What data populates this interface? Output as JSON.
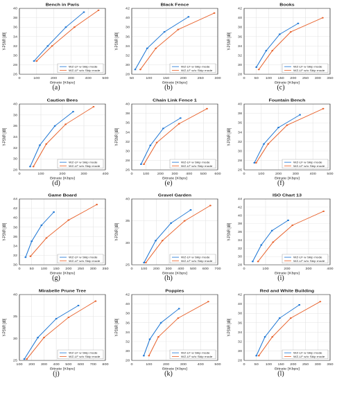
{
  "legend_labels": [
    "WZ-LF w Skip mode",
    "WZ-LF w/o Skip mode"
  ],
  "series_colors": [
    "#1f77d4",
    "#e8622c"
  ],
  "xlabel": "Bitrate [Kbps]",
  "ylabel": "Y-PSNR [dB]",
  "chart_data": [
    {
      "type": "line",
      "letter": "(a)",
      "title": "Bench in Paris",
      "xlim": [
        0,
        500
      ],
      "xticks": [
        0,
        100,
        200,
        300,
        400,
        500
      ],
      "ylim": [
        26,
        40
      ],
      "yticks": [
        26,
        28,
        30,
        32,
        34,
        36,
        38,
        40
      ],
      "series": [
        {
          "name": "WZ-LF w Skip mode",
          "x": [
            85,
            165,
            270,
            375
          ],
          "y": [
            28.8,
            32,
            36,
            39.2
          ]
        },
        {
          "name": "WZ-LF w/o Skip mode",
          "x": [
            100,
            190,
            320,
            460
          ],
          "y": [
            28.8,
            32,
            36,
            39.6
          ]
        }
      ]
    },
    {
      "type": "line",
      "letter": "(b)",
      "title": "Black Fence",
      "xlim": [
        50,
        300
      ],
      "xticks": [
        50,
        100,
        150,
        200,
        250,
        300
      ],
      "ylim": [
        28,
        42
      ],
      "yticks": [
        28,
        30,
        32,
        34,
        36,
        38,
        40,
        42
      ],
      "series": [
        {
          "name": "WZ-LF w Skip mode",
          "x": [
            60,
            95,
            145,
            215
          ],
          "y": [
            29,
            33.5,
            37,
            40.2
          ]
        },
        {
          "name": "WZ-LF w/o Skip mode",
          "x": [
            75,
            120,
            185,
            290
          ],
          "y": [
            29,
            33.5,
            37.5,
            41
          ]
        }
      ]
    },
    {
      "type": "line",
      "letter": "(c)",
      "title": "Books",
      "xlim": [
        0,
        350
      ],
      "xticks": [
        0,
        50,
        100,
        150,
        200,
        250,
        300,
        350
      ],
      "ylim": [
        28,
        42
      ],
      "yticks": [
        28,
        30,
        32,
        34,
        36,
        38,
        40,
        42
      ],
      "series": [
        {
          "name": "WZ-LF w Skip mode",
          "x": [
            50,
            90,
            145,
            220
          ],
          "y": [
            29.5,
            33,
            36.5,
            38.8
          ]
        },
        {
          "name": "WZ-LF w/o Skip mode",
          "x": [
            60,
            115,
            190,
            320
          ],
          "y": [
            29,
            33,
            37,
            40
          ]
        }
      ]
    },
    {
      "type": "line",
      "letter": "(d)",
      "title": "Caution Bees",
      "xlim": [
        0,
        400
      ],
      "xticks": [
        0,
        100,
        200,
        300,
        400
      ],
      "ylim": [
        28,
        40
      ],
      "yticks": [
        28,
        30,
        32,
        34,
        36,
        38,
        40
      ],
      "series": [
        {
          "name": "WZ-LF w Skip mode",
          "x": [
            50,
            95,
            165,
            250
          ],
          "y": [
            28.6,
            32.5,
            36,
            38.6
          ]
        },
        {
          "name": "WZ-LF w/o Skip mode",
          "x": [
            65,
            125,
            215,
            345
          ],
          "y": [
            28.6,
            32.7,
            36.3,
            39.5
          ]
        }
      ]
    },
    {
      "type": "line",
      "letter": "(e)",
      "title": "Chain Link Fence 1",
      "xlim": [
        0,
        600
      ],
      "xticks": [
        0,
        100,
        200,
        300,
        400,
        500,
        600
      ],
      "ylim": [
        26,
        40
      ],
      "yticks": [
        26,
        28,
        30,
        32,
        34,
        36,
        38,
        40
      ],
      "series": [
        {
          "name": "WZ-LF w Skip mode",
          "x": [
            65,
            130,
            220,
            340
          ],
          "y": [
            27.2,
            31.2,
            34.8,
            37
          ]
        },
        {
          "name": "WZ-LF w/o Skip mode",
          "x": [
            85,
            175,
            330,
            525
          ],
          "y": [
            27.2,
            31.8,
            35.8,
            39
          ]
        }
      ]
    },
    {
      "type": "line",
      "letter": "(f)",
      "title": "Fountain Bench",
      "xlim": [
        0,
        500
      ],
      "xticks": [
        0,
        100,
        200,
        300,
        400,
        500
      ],
      "ylim": [
        26,
        40
      ],
      "yticks": [
        26,
        28,
        30,
        32,
        34,
        36,
        38,
        40
      ],
      "series": [
        {
          "name": "WZ-LF w Skip mode",
          "x": [
            60,
            115,
            200,
            325
          ],
          "y": [
            27.5,
            31.5,
            35,
            37.7
          ]
        },
        {
          "name": "WZ-LF w/o Skip mode",
          "x": [
            70,
            140,
            250,
            460
          ],
          "y": [
            27.5,
            31.5,
            35.5,
            39
          ]
        }
      ]
    },
    {
      "type": "line",
      "letter": "(g)",
      "title": "Game Board",
      "xlim": [
        0,
        350
      ],
      "xticks": [
        0,
        50,
        100,
        150,
        200,
        250,
        300,
        350
      ],
      "ylim": [
        30,
        44
      ],
      "yticks": [
        30,
        32,
        34,
        36,
        38,
        40,
        42,
        44
      ],
      "series": [
        {
          "name": "WZ-LF w Skip mode",
          "x": [
            25,
            50,
            90,
            140
          ],
          "y": [
            31.6,
            35,
            38.4,
            41.2
          ]
        },
        {
          "name": "WZ-LF w/o Skip mode",
          "x": [
            45,
            110,
            200,
            315
          ],
          "y": [
            31.8,
            35.7,
            39.5,
            42.8
          ]
        }
      ]
    },
    {
      "type": "line",
      "letter": "(h)",
      "title": "Gravel Garden",
      "xlim": [
        0,
        700
      ],
      "xticks": [
        0,
        100,
        200,
        300,
        400,
        500,
        600,
        700
      ],
      "ylim": [
        25,
        40
      ],
      "yticks": [
        25,
        30,
        35,
        40
      ],
      "series": [
        {
          "name": "WZ-LF w Skip mode",
          "x": [
            100,
            195,
            320,
            480
          ],
          "y": [
            25.5,
            30.5,
            34.5,
            37.5
          ]
        },
        {
          "name": "WZ-LF w/o Skip mode",
          "x": [
            115,
            250,
            430,
            640
          ],
          "y": [
            25.5,
            30.5,
            35,
            38.5
          ]
        }
      ]
    },
    {
      "type": "line",
      "letter": "(i)",
      "title": "ISO Chart 13",
      "xlim": [
        0,
        400
      ],
      "xticks": [
        0,
        100,
        200,
        300,
        400
      ],
      "ylim": [
        28,
        44
      ],
      "yticks": [
        28,
        30,
        32,
        34,
        36,
        38,
        40,
        42,
        44
      ],
      "series": [
        {
          "name": "WZ-LF w Skip mode",
          "x": [
            40,
            80,
            130,
            205
          ],
          "y": [
            28.8,
            32.8,
            36.3,
            38.8
          ]
        },
        {
          "name": "WZ-LF w/o Skip mode",
          "x": [
            65,
            135,
            225,
            370
          ],
          "y": [
            28.8,
            33.5,
            37.6,
            41
          ]
        }
      ]
    },
    {
      "type": "line",
      "letter": "(j)",
      "title": "Mirabelle Prune Tree",
      "xlim": [
        100,
        800
      ],
      "xticks": [
        100,
        200,
        300,
        400,
        500,
        600,
        700,
        800
      ],
      "ylim": [
        25,
        40
      ],
      "yticks": [
        25,
        30,
        35,
        40
      ],
      "series": [
        {
          "name": "WZ-LF w Skip mode",
          "x": [
            140,
            250,
            400,
            580
          ],
          "y": [
            25.3,
            30.2,
            34.5,
            37.5
          ]
        },
        {
          "name": "WZ-LF w/o Skip mode",
          "x": [
            160,
            300,
            500,
            720
          ],
          "y": [
            25.3,
            30.2,
            34.8,
            38.5
          ]
        }
      ]
    },
    {
      "type": "line",
      "letter": "(k)",
      "title": "Poppies",
      "xlim": [
        0,
        500
      ],
      "xticks": [
        0,
        100,
        200,
        300,
        400,
        500
      ],
      "ylim": [
        28,
        42
      ],
      "yticks": [
        28,
        30,
        32,
        34,
        36,
        38,
        40,
        42
      ],
      "series": [
        {
          "name": "WZ-LF w Skip mode",
          "x": [
            70,
            105,
            170,
            275
          ],
          "y": [
            29,
            32.5,
            36,
            39
          ]
        },
        {
          "name": "WZ-LF w/o Skip mode",
          "x": [
            100,
            155,
            270,
            445
          ],
          "y": [
            29,
            33,
            37,
            40.5
          ]
        }
      ]
    },
    {
      "type": "line",
      "letter": "(l)",
      "title": "Red and White Building",
      "xlim": [
        0,
        350
      ],
      "xticks": [
        0,
        50,
        100,
        150,
        200,
        250,
        300,
        350
      ],
      "ylim": [
        28,
        42
      ],
      "yticks": [
        28,
        30,
        32,
        34,
        36,
        38,
        40,
        42
      ],
      "series": [
        {
          "name": "WZ-LF w Skip mode",
          "x": [
            50,
            85,
            145,
            225
          ],
          "y": [
            29,
            33,
            37,
            39.8
          ]
        },
        {
          "name": "WZ-LF w/o Skip mode",
          "x": [
            60,
            115,
            190,
            310
          ],
          "y": [
            29,
            33,
            37,
            40.5
          ]
        }
      ]
    }
  ]
}
